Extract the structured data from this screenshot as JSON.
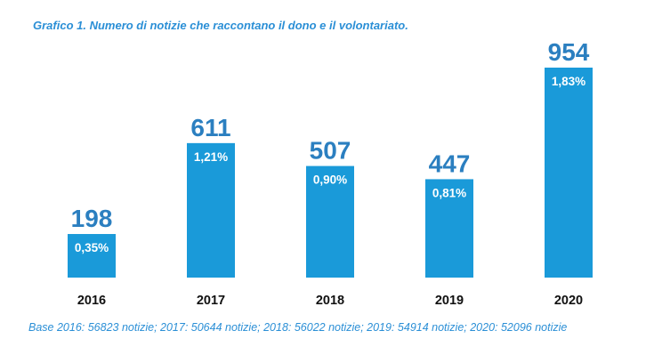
{
  "title": "Grafico 1. Numero di notizie che raccontano il dono e il volontariato.",
  "footnote": "Base 2016: 56823 notizie; 2017: 50644 notizie; 2018: 56022 notizie; 2019: 54914 notizie; 2020: 52096 notizie",
  "colors": {
    "bar": "#1a9ad9",
    "value_label": "#2b7fc0",
    "text_accent": "#2b8fd6"
  },
  "chart_data": {
    "type": "bar",
    "title": "Grafico 1. Numero di notizie che raccontano il dono e il volontariato.",
    "categories": [
      "2016",
      "2017",
      "2018",
      "2019",
      "2020"
    ],
    "values": [
      198,
      611,
      507,
      447,
      954
    ],
    "percent_labels": [
      "0,35%",
      "1,21%",
      "0,90%",
      "0,81%",
      "1,83%"
    ],
    "xlabel": "",
    "ylabel": "",
    "ylim": [
      0,
      954
    ],
    "grid": false,
    "legend": "none"
  }
}
